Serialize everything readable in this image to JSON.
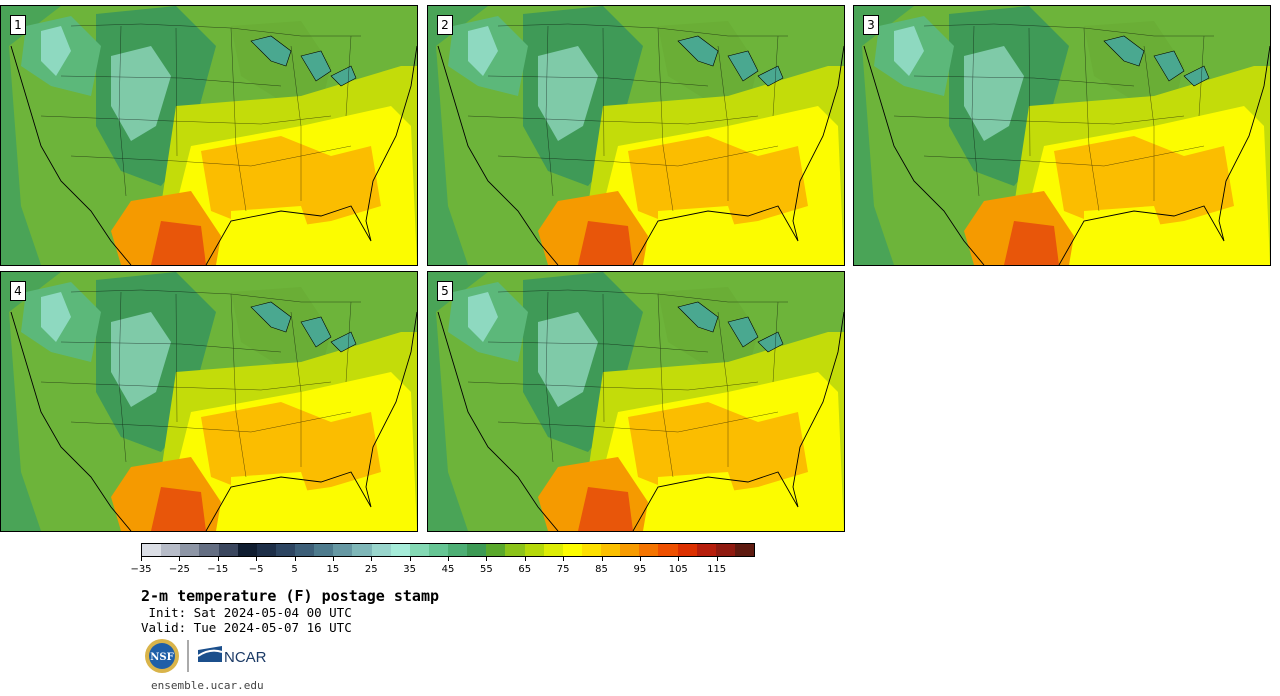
{
  "stamps": [
    {
      "number": "1"
    },
    {
      "number": "2"
    },
    {
      "number": "3"
    },
    {
      "number": "4"
    },
    {
      "number": "5"
    }
  ],
  "colorbar": {
    "colors": [
      "#dcdfe6",
      "#b7bcc8",
      "#8e96a6",
      "#646e82",
      "#3b475e",
      "#101d30",
      "#1e2f48",
      "#2d4561",
      "#3d5f78",
      "#4e7b8d",
      "#6698a3",
      "#7fb7b8",
      "#99d5cc",
      "#a6ecd9",
      "#84d9b4",
      "#66c594",
      "#4eaf75",
      "#3d9a55",
      "#5aa82c",
      "#8cc31a",
      "#b5d80a",
      "#ddec05",
      "#fcfc00",
      "#fde000",
      "#fbc000",
      "#f79b00",
      "#f47400",
      "#ee5000",
      "#dc3000",
      "#b61e0c",
      "#8f1a10",
      "#5e1a10"
    ],
    "tick_labels": [
      "−35",
      "−25",
      "−15",
      "−5",
      "5",
      "15",
      "25",
      "35",
      "45",
      "55",
      "65",
      "75",
      "85",
      "95",
      "105",
      "115"
    ]
  },
  "title": "2-m temperature (F) postage stamp",
  "init": " Init: Sat 2024-05-04 00 UTC",
  "valid": "Valid: Tue 2024-05-07 16 UTC",
  "logos": {
    "nsf": "NSF",
    "ncar": "NCAR"
  },
  "site": "ensemble.ucar.edu"
}
